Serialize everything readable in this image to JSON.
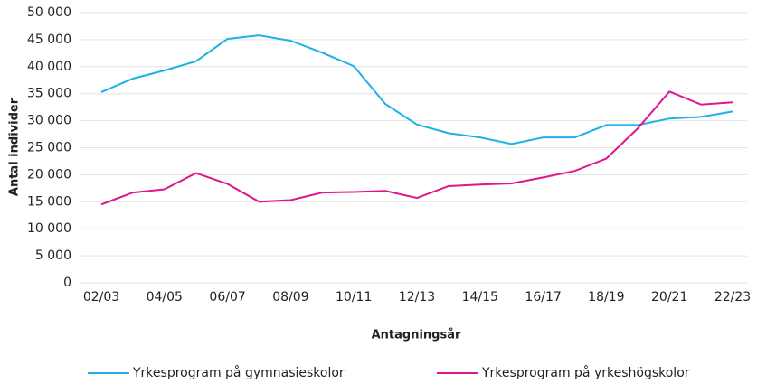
{
  "chart_data": {
    "type": "line",
    "xlabel": "Antagningsår",
    "ylabel": "Antal individer",
    "categories": [
      "02/03",
      null,
      "04/05",
      null,
      "06/07",
      null,
      "08/09",
      null,
      "10/11",
      null,
      "12/13",
      null,
      "14/15",
      null,
      "16/17",
      null,
      "18/19",
      null,
      "20/21",
      null,
      "22/23"
    ],
    "series": [
      {
        "name": "Yrkesprogram på gymnasieskolor",
        "color": "#1fb1e6",
        "values": [
          35300,
          37800,
          39300,
          41000,
          45150,
          45800,
          44800,
          42600,
          40100,
          33100,
          29300,
          27700,
          26900,
          25700,
          26900,
          26900,
          29200,
          29200,
          30400,
          30700,
          31700
        ]
      },
      {
        "name": "Yrkesprogram på yrkeshögskolor",
        "color": "#e0168c",
        "values": [
          14500,
          16700,
          17300,
          20300,
          18300,
          15000,
          15300,
          16700,
          16800,
          17000,
          15700,
          17900,
          18200,
          18400,
          19500,
          20700,
          23000,
          28600,
          35400,
          33000,
          33400
        ]
      }
    ],
    "ylim": [
      0,
      50000
    ],
    "yticks": [
      0,
      {
        "value": 5000,
        "label": "5 000"
      },
      {
        "value": 10000,
        "label": "10 000"
      },
      {
        "value": 15000,
        "label": "15 000"
      },
      {
        "value": 20000,
        "label": "20 000"
      },
      {
        "value": 25000,
        "label": "25 000"
      },
      {
        "value": 30000,
        "label": "30 000"
      },
      {
        "value": 35000,
        "label": "35 000"
      },
      {
        "value": 40000,
        "label": "40 000"
      },
      {
        "value": 45000,
        "label": "45 000"
      },
      {
        "value": 50000,
        "label": "50 000"
      }
    ],
    "grid": true,
    "legend": "bottom"
  }
}
